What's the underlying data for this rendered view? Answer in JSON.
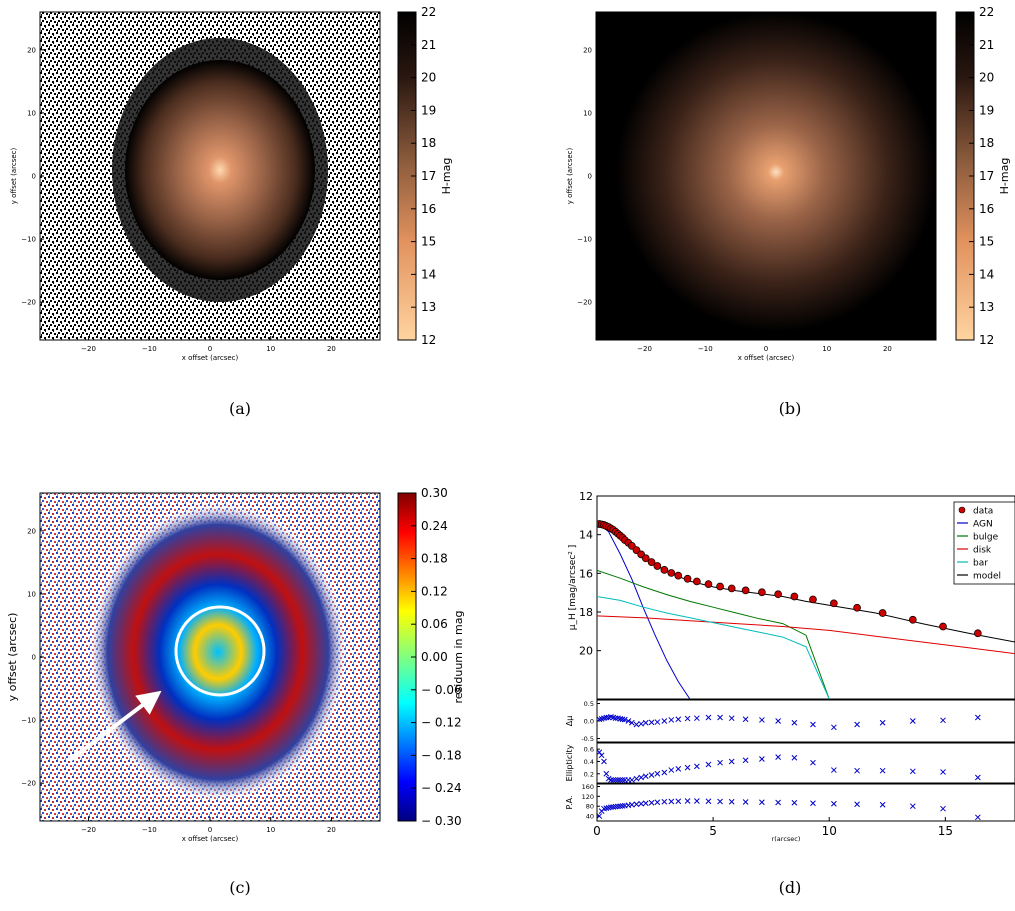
{
  "panels": {
    "a": {
      "caption": "(a)"
    },
    "b": {
      "caption": "(b)"
    },
    "c": {
      "caption": "(c)"
    },
    "d": {
      "caption": "(d)"
    }
  },
  "chart_data": [
    {
      "type": "heatmap",
      "panel": "a",
      "xlabel": "x offset (arcsec)",
      "ylabel": "y offset (arcsec)",
      "xticks": [
        -20,
        -10,
        0,
        10,
        20
      ],
      "yticks": [
        20,
        10,
        0,
        -10,
        -20
      ],
      "xlim": [
        -28,
        28
      ],
      "ylim": [
        -26,
        26
      ],
      "colorbar": {
        "label": "H-mag",
        "ticks": [
          22,
          21,
          20,
          19,
          18,
          17,
          16,
          15,
          14,
          13,
          12
        ],
        "range": [
          12,
          22
        ]
      }
    },
    {
      "type": "heatmap",
      "panel": "b",
      "xlabel": "x offset (arcsec)",
      "ylabel": "y offset (arcsec)",
      "xticks": [
        -20,
        -10,
        0,
        10,
        20
      ],
      "yticks": [
        20,
        10,
        0,
        -10,
        -20
      ],
      "xlim": [
        -28,
        28
      ],
      "ylim": [
        -26,
        26
      ],
      "colorbar": {
        "label": "H-mag",
        "ticks": [
          22,
          21,
          20,
          19,
          18,
          17,
          16,
          15,
          14,
          13,
          12
        ],
        "range": [
          12,
          22
        ]
      }
    },
    {
      "type": "heatmap",
      "panel": "c",
      "xlabel": "x offset (arcsec)",
      "ylabel": "y offset (arcsec)",
      "xticks": [
        -20,
        -10,
        0,
        10,
        20
      ],
      "yticks": [
        20,
        10,
        0,
        -10,
        -20
      ],
      "xlim": [
        -28,
        28
      ],
      "ylim": [
        -26,
        26
      ],
      "colorbar": {
        "label": "residuum in mag",
        "ticks": [
          "0.30",
          "0.24",
          "0.18",
          "0.12",
          "0.06",
          "0.00",
          "− 0.06",
          "− 0.12",
          "− 0.18",
          "− 0.24",
          "− 0.30"
        ],
        "range": [
          -0.3,
          0.3
        ]
      }
    },
    {
      "type": "line",
      "panel": "d",
      "xlabel": "r(arcsec)",
      "xticks": [
        0,
        5,
        10,
        15
      ],
      "xlim": [
        0,
        18
      ],
      "legend_position": "top-right",
      "top": {
        "ylabel": "μ_H [mag/arcsec² ]",
        "ylim": [
          22.5,
          12
        ],
        "yticks": [
          12,
          14,
          16,
          18,
          20
        ],
        "series": [
          {
            "name": "data",
            "color": "#cc0000",
            "marker": "circle",
            "x": [
              0.1,
              0.2,
              0.3,
              0.4,
              0.5,
              0.6,
              0.7,
              0.8,
              0.9,
              1.0,
              1.1,
              1.2,
              1.35,
              1.5,
              1.7,
              1.9,
              2.1,
              2.35,
              2.6,
              2.9,
              3.2,
              3.5,
              3.9,
              4.3,
              4.8,
              5.3,
              5.8,
              6.4,
              7.1,
              7.8,
              8.5,
              9.3,
              10.2,
              11.2,
              12.3,
              13.6,
              14.9,
              16.4
            ],
            "y": [
              13.45,
              13.47,
              13.5,
              13.55,
              13.6,
              13.68,
              13.75,
              13.85,
              13.95,
              14.05,
              14.15,
              14.28,
              14.42,
              14.58,
              14.8,
              15.02,
              15.22,
              15.42,
              15.62,
              15.82,
              15.98,
              16.12,
              16.28,
              16.42,
              16.56,
              16.68,
              16.78,
              16.88,
              16.98,
              17.08,
              17.2,
              17.35,
              17.55,
              17.78,
              18.05,
              18.4,
              18.75,
              19.1
            ]
          },
          {
            "name": "AGN",
            "color": "#0000cc",
            "x": [
              0.1,
              0.5,
              1.0,
              1.5,
              2.0,
              2.5,
              3.0,
              3.5,
              4.0
            ],
            "y": [
              13.45,
              13.85,
              15.0,
              16.3,
              17.8,
              19.2,
              20.5,
              21.6,
              22.5
            ]
          },
          {
            "name": "bulge",
            "color": "#007700",
            "x": [
              0,
              1,
              2,
              3,
              4,
              5,
              6,
              7,
              8,
              9,
              10
            ],
            "y": [
              15.85,
              16.25,
              16.7,
              17.1,
              17.45,
              17.75,
              18.05,
              18.35,
              18.6,
              19.2,
              22.5
            ]
          },
          {
            "name": "disk",
            "color": "#dd0000",
            "x": [
              0,
              2,
              4,
              6,
              8,
              10,
              12,
              14,
              16,
              18
            ],
            "y": [
              18.2,
              18.3,
              18.45,
              18.6,
              18.75,
              18.95,
              19.25,
              19.55,
              19.85,
              20.15
            ]
          },
          {
            "name": "bar",
            "color": "#00bbbb",
            "x": [
              0,
              1,
              2,
              3,
              4,
              5,
              6,
              7,
              8,
              9,
              10
            ],
            "y": [
              17.2,
              17.4,
              17.75,
              18.05,
              18.3,
              18.55,
              18.8,
              19.05,
              19.3,
              19.8,
              22.5
            ]
          },
          {
            "name": "model",
            "color": "#000000",
            "x": [
              0.1,
              0.5,
              1.0,
              1.5,
              2.0,
              3.0,
              4.0,
              5.0,
              6.0,
              7.0,
              8.0,
              9.0,
              10.0,
              12.0,
              14.0,
              16.0,
              18.0
            ],
            "y": [
              13.45,
              13.6,
              14.05,
              14.6,
              15.15,
              15.9,
              16.4,
              16.7,
              16.9,
              17.05,
              17.2,
              17.45,
              17.65,
              18.05,
              18.6,
              19.1,
              19.55
            ]
          }
        ]
      },
      "residual": {
        "ylabel": "Δμ",
        "ylim": [
          -0.6,
          0.6
        ],
        "yticks": [
          "0.5",
          "0.0",
          "-0.5"
        ],
        "color": "#0000cc",
        "x": [
          0.1,
          0.2,
          0.3,
          0.4,
          0.5,
          0.6,
          0.7,
          0.8,
          0.9,
          1.0,
          1.1,
          1.2,
          1.35,
          1.5,
          1.7,
          1.9,
          2.1,
          2.35,
          2.6,
          2.9,
          3.2,
          3.5,
          3.9,
          4.3,
          4.8,
          5.3,
          5.8,
          6.4,
          7.1,
          7.8,
          8.5,
          9.3,
          10.2,
          11.2,
          12.3,
          13.6,
          14.9,
          16.4
        ],
        "y": [
          0.05,
          0.06,
          0.08,
          0.1,
          0.1,
          0.12,
          0.1,
          0.08,
          0.08,
          0.06,
          0.05,
          0.04,
          0.0,
          -0.05,
          -0.1,
          -0.08,
          -0.05,
          -0.04,
          -0.03,
          0.0,
          0.03,
          0.05,
          0.07,
          0.08,
          0.1,
          0.1,
          0.08,
          0.05,
          0.03,
          0.0,
          -0.05,
          -0.1,
          -0.18,
          -0.1,
          -0.05,
          0.0,
          0.02,
          0.1
        ]
      },
      "ellipticity": {
        "ylabel": "Ellipticity",
        "ylim": [
          0.05,
          0.7
        ],
        "yticks": [
          "0.6",
          "0.4",
          "0.2"
        ],
        "color": "#0000cc",
        "x": [
          0.1,
          0.2,
          0.3,
          0.4,
          0.5,
          0.6,
          0.7,
          0.8,
          0.9,
          1.0,
          1.1,
          1.2,
          1.35,
          1.5,
          1.7,
          1.9,
          2.1,
          2.35,
          2.6,
          2.9,
          3.2,
          3.5,
          3.9,
          4.3,
          4.8,
          5.3,
          5.8,
          6.4,
          7.1,
          7.8,
          8.5,
          9.3,
          10.2,
          11.2,
          12.3,
          13.6,
          14.9,
          16.4
        ],
        "y": [
          0.55,
          0.5,
          0.4,
          0.2,
          0.12,
          0.1,
          0.1,
          0.1,
          0.1,
          0.1,
          0.1,
          0.1,
          0.1,
          0.1,
          0.12,
          0.14,
          0.16,
          0.18,
          0.2,
          0.22,
          0.26,
          0.28,
          0.3,
          0.32,
          0.35,
          0.38,
          0.4,
          0.42,
          0.44,
          0.47,
          0.46,
          0.38,
          0.26,
          0.25,
          0.25,
          0.24,
          0.23,
          0.14
        ]
      },
      "pa": {
        "ylabel": "P.A.",
        "ylim": [
          20,
          170
        ],
        "yticks": [
          "160",
          "120",
          "80",
          "40"
        ],
        "color": "#0000cc",
        "x": [
          0.1,
          0.2,
          0.3,
          0.4,
          0.5,
          0.6,
          0.7,
          0.8,
          0.9,
          1.0,
          1.1,
          1.2,
          1.35,
          1.5,
          1.7,
          1.9,
          2.1,
          2.35,
          2.6,
          2.9,
          3.2,
          3.5,
          3.9,
          4.3,
          4.8,
          5.3,
          5.8,
          6.4,
          7.1,
          7.8,
          8.5,
          9.3,
          10.2,
          11.2,
          12.3,
          13.6,
          14.9,
          16.4
        ],
        "y": [
          40,
          60,
          70,
          72,
          74,
          76,
          77,
          78,
          79,
          80,
          81,
          82,
          84,
          86,
          88,
          90,
          92,
          94,
          96,
          98,
          99,
          100,
          101,
          101,
          100,
          99,
          98,
          97,
          96,
          95,
          94,
          92,
          90,
          88,
          86,
          80,
          70,
          35
        ]
      }
    }
  ]
}
